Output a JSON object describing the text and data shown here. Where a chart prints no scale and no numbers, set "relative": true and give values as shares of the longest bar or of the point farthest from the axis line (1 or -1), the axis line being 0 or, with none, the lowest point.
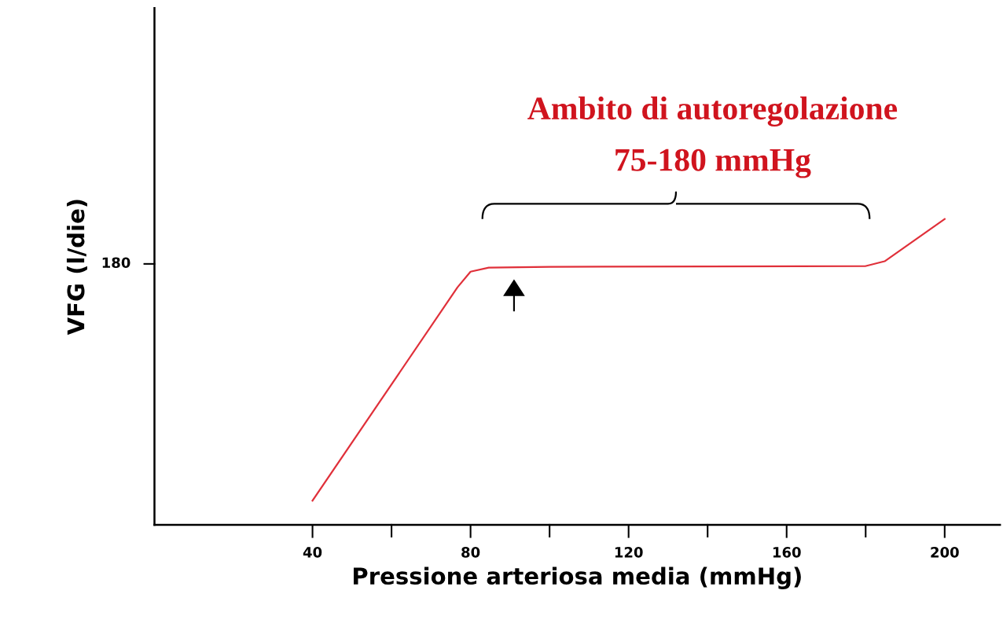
{
  "chart_data": {
    "type": "line",
    "relative": true,
    "xlabel": "Pressione arteriosa media (mmHg)",
    "ylabel": "VFG (l/die)",
    "x": [
      40,
      76.7,
      80,
      84.6,
      100,
      140,
      179.9,
      184.8,
      200
    ],
    "series": [
      {
        "color": "#e0303a",
        "values": [
          0.079,
          0.777,
          0.828,
          0.841,
          0.844,
          0.845,
          0.846,
          0.862,
          1.0
        ]
      }
    ],
    "xlim": [
      0,
      214
    ],
    "xticks": [
      40,
      {
        "value": 60,
        "label": null
      },
      80,
      {
        "value": 100,
        "label": null
      },
      120,
      {
        "value": 140,
        "label": null
      },
      160,
      {
        "value": 180,
        "label": null
      },
      200
    ],
    "annotations": [
      "Ambito di autoregolazione",
      "75-180 mmHg",
      "180"
    ],
    "grid": false,
    "legend": false,
    "marker": "none",
    "line_style": "solid"
  }
}
